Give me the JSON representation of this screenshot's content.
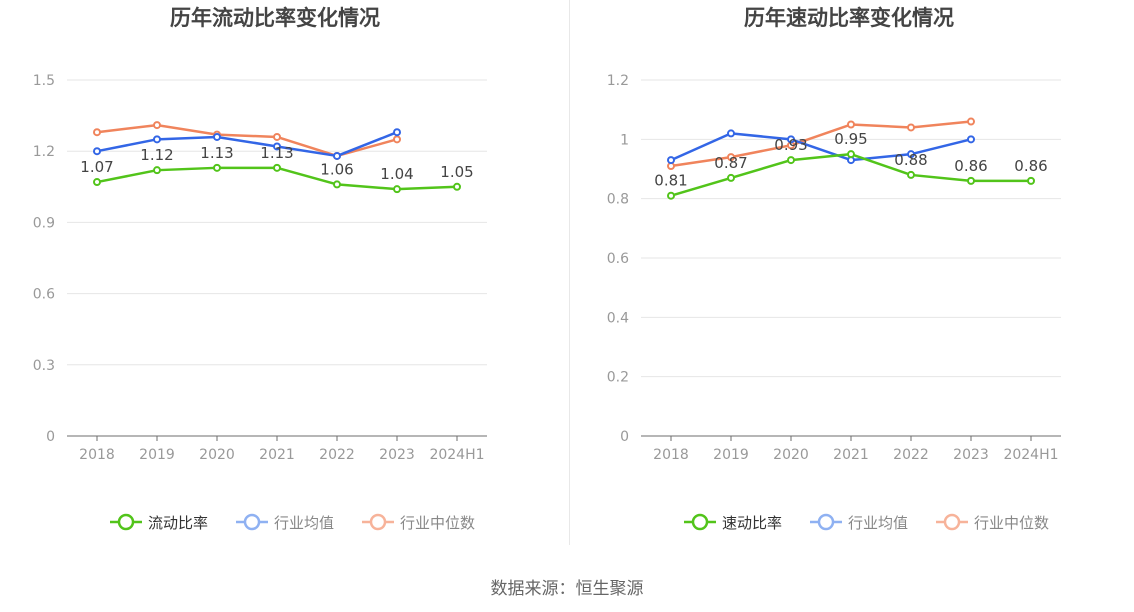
{
  "colors": {
    "primary": "#52c41a",
    "avg": "#3366e6",
    "median": "#f0845c",
    "avg_legend": "#8fb1f2",
    "median_legend": "#f7b39a",
    "grid": "#e6e6e6",
    "axis": "#6e6e6e",
    "tick_text": "#999999",
    "label_text": "#444444",
    "title_text": "#444444"
  },
  "footer": {
    "source": "数据来源：恒生聚源"
  },
  "chart_data": [
    {
      "type": "line",
      "title": "历年流动比率变化情况",
      "categories": [
        "2018",
        "2019",
        "2020",
        "2021",
        "2022",
        "2023",
        "2024H1"
      ],
      "ylim": [
        0,
        1.5
      ],
      "yticks": [
        "0",
        "0.3",
        "0.6",
        "0.9",
        "1.2",
        "1.5"
      ],
      "grid": true,
      "legend_position": "bottom",
      "series": [
        {
          "name": "流动比率",
          "role": "primary",
          "values": [
            1.07,
            1.12,
            1.13,
            1.13,
            1.06,
            1.04,
            1.05
          ],
          "labels": [
            "1.07",
            "1.12",
            "1.13",
            "1.13",
            "1.06",
            "1.04",
            "1.05"
          ]
        },
        {
          "name": "行业均值",
          "role": "avg",
          "values": [
            1.2,
            1.25,
            1.26,
            1.22,
            1.18,
            1.28,
            null
          ]
        },
        {
          "name": "行业中位数",
          "role": "median",
          "values": [
            1.28,
            1.31,
            1.27,
            1.26,
            1.18,
            1.25,
            null
          ]
        }
      ]
    },
    {
      "type": "line",
      "title": "历年速动比率变化情况",
      "categories": [
        "2018",
        "2019",
        "2020",
        "2021",
        "2022",
        "2023",
        "2024H1"
      ],
      "ylim": [
        0,
        1.2
      ],
      "yticks": [
        "0",
        "0.2",
        "0.4",
        "0.6",
        "0.8",
        "1",
        "1.2"
      ],
      "grid": true,
      "legend_position": "bottom",
      "series": [
        {
          "name": "速动比率",
          "role": "primary",
          "values": [
            0.81,
            0.87,
            0.93,
            0.95,
            0.88,
            0.86,
            0.86
          ],
          "labels": [
            "0.81",
            "0.87",
            "0.93",
            "0.95",
            "0.88",
            "0.86",
            "0.86"
          ]
        },
        {
          "name": "行业均值",
          "role": "avg",
          "values": [
            0.93,
            1.02,
            1.0,
            0.93,
            0.95,
            1.0,
            null
          ]
        },
        {
          "name": "行业中位数",
          "role": "median",
          "values": [
            0.91,
            0.94,
            0.98,
            1.05,
            1.04,
            1.06,
            null
          ]
        }
      ]
    }
  ]
}
